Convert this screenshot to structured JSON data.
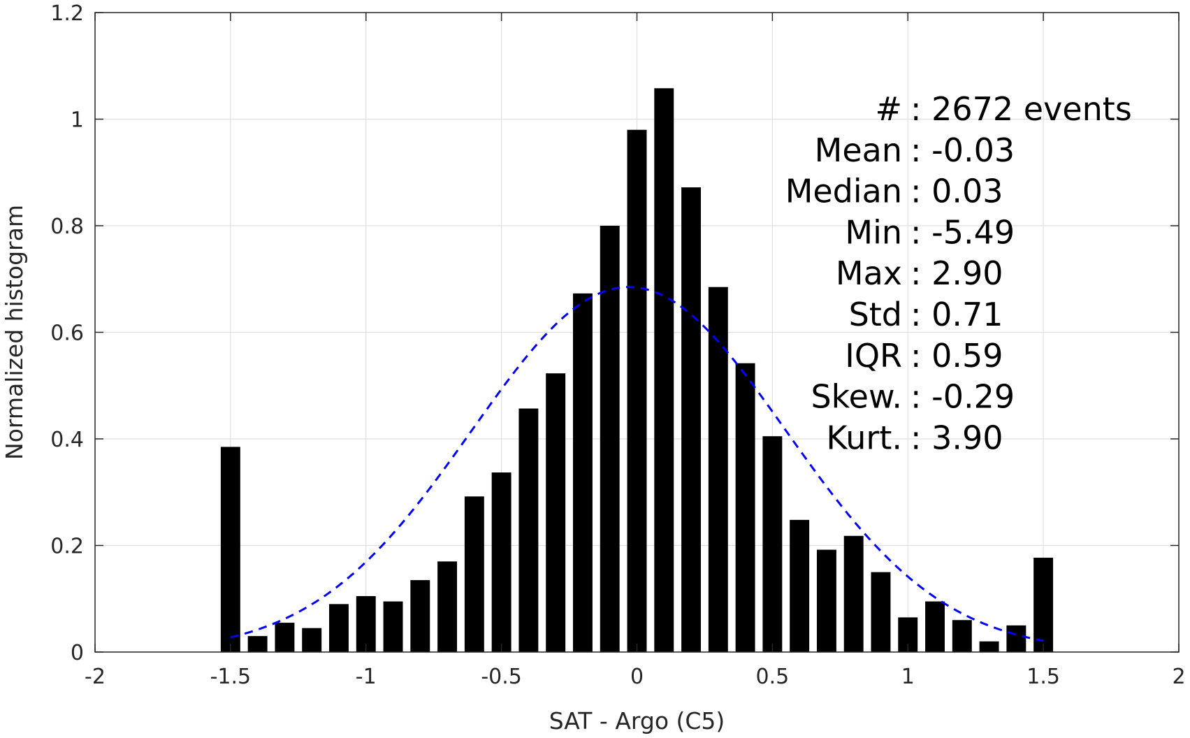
{
  "chart_data": {
    "type": "bar",
    "title": "",
    "xlabel": "SAT - Argo (C5)",
    "ylabel": "Normalized histogram",
    "xlim": [
      -2,
      2
    ],
    "ylim": [
      0,
      1.2
    ],
    "xticks": [
      "-2",
      "-1.5",
      "-1",
      "-0.5",
      "0",
      "0.5",
      "1",
      "1.5",
      "2"
    ],
    "yticks": [
      "0",
      "0.2",
      "0.4",
      "0.6",
      "0.8",
      "1",
      "1.2"
    ],
    "grid": true,
    "bin_centers": [
      -1.5,
      -1.4,
      -1.3,
      -1.2,
      -1.1,
      -1.0,
      -0.9,
      -0.8,
      -0.7,
      -0.6,
      -0.5,
      -0.4,
      -0.3,
      -0.2,
      -0.1,
      0.0,
      0.1,
      0.2,
      0.3,
      0.4,
      0.5,
      0.6,
      0.7,
      0.8,
      0.9,
      1.0,
      1.1,
      1.2,
      1.3,
      1.4,
      1.5
    ],
    "values": [
      0.385,
      0.03,
      0.055,
      0.045,
      0.09,
      0.105,
      0.095,
      0.135,
      0.17,
      0.292,
      0.337,
      0.457,
      0.523,
      0.673,
      0.8,
      0.98,
      1.058,
      0.872,
      0.685,
      0.542,
      0.405,
      0.248,
      0.192,
      0.218,
      0.15,
      0.065,
      0.095,
      0.06,
      0.02,
      0.05,
      0.177
    ],
    "bar_color": "#000000",
    "fit_curve": {
      "style": "dashed",
      "color": "#0000ff",
      "mean": -0.03,
      "std": 0.58,
      "peak": 0.685,
      "x_range": [
        -1.5,
        1.5
      ]
    },
    "annotations": [
      {
        "label": "#  ",
        "value": ": 2672 events"
      },
      {
        "label": "Mean",
        "value": ": -0.03"
      },
      {
        "label": "Median",
        "value": ": 0.03"
      },
      {
        "label": "Min",
        "value": ": -5.49"
      },
      {
        "label": "Max",
        "value": ": 2.90"
      },
      {
        "label": "Std",
        "value": ": 0.71"
      },
      {
        "label": "IQR",
        "value": ": 0.59"
      },
      {
        "label": "Skew.",
        "value": ": -0.29"
      },
      {
        "label": "Kurt.",
        "value": ": 3.90"
      }
    ]
  }
}
